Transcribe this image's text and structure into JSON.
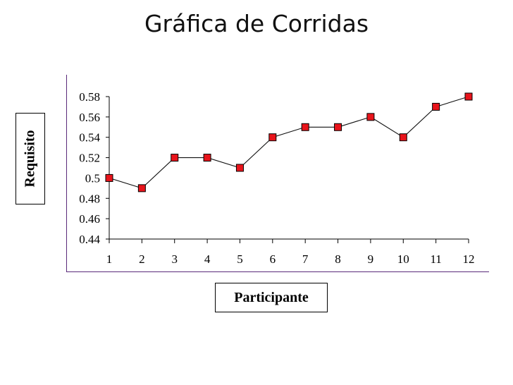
{
  "slide": {
    "title": "Gráfica de Corridas"
  },
  "chart_data": {
    "type": "line",
    "title": "",
    "xlabel": "Participante",
    "ylabel": "Requisito",
    "categories": [
      "1",
      "2",
      "3",
      "4",
      "5",
      "6",
      "7",
      "8",
      "9",
      "10",
      "11",
      "12"
    ],
    "series": [
      {
        "name": "",
        "values": [
          0.5,
          0.49,
          0.52,
          0.52,
          0.51,
          0.54,
          0.55,
          0.55,
          0.56,
          0.54,
          0.57,
          0.58
        ]
      }
    ],
    "ylim": [
      0.44,
      0.58
    ],
    "yticks": [
      "0.44",
      "0.46",
      "0.48",
      "0.5",
      "0.52",
      "0.54",
      "0.56",
      "0.58"
    ],
    "grid": false,
    "legend": "none",
    "colors": {
      "line": "#111111",
      "marker_fill": "#e8141b",
      "marker_edge": "#000000",
      "axis": "#000000"
    }
  }
}
